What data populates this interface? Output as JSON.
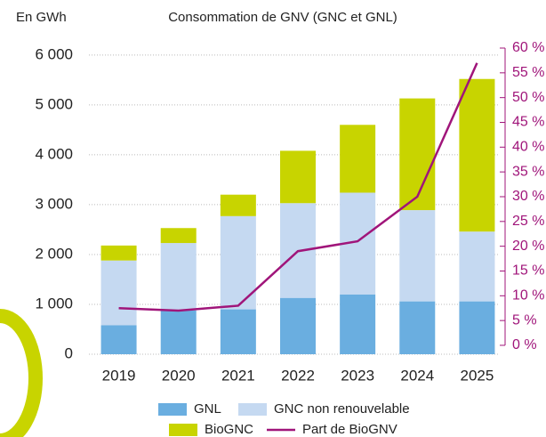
{
  "chart_data": {
    "type": "bar",
    "stacked": true,
    "title": "Consommation de GNV (GNC et GNL)",
    "y_label": "En GWh",
    "categories": [
      "2019",
      "2020",
      "2021",
      "2022",
      "2023",
      "2024",
      "2025"
    ],
    "series": [
      {
        "name": "GNL",
        "color": "#6aaee0",
        "values": [
          580,
          880,
          900,
          1130,
          1200,
          1060,
          1060
        ]
      },
      {
        "name": "GNC non renouvelable",
        "color": "#c5d9f1",
        "values": [
          1300,
          1350,
          1870,
          1900,
          2040,
          1830,
          1400
        ]
      },
      {
        "name": "BioGNC",
        "color": "#c8d400",
        "values": [
          300,
          300,
          430,
          1050,
          1360,
          2240,
          3060
        ]
      },
      {
        "name": "Part de BioGNV",
        "color": "#a0157a",
        "type": "line",
        "axis": "y2",
        "values": [
          7.5,
          7,
          8,
          19,
          21,
          30,
          57
        ]
      }
    ],
    "ylim": [
      0,
      6140
    ],
    "yticks": [
      0,
      {
        "value": 1000,
        "label": "1 000"
      },
      {
        "value": 2000,
        "label": "2 000"
      },
      {
        "value": 3000,
        "label": "3 000"
      },
      {
        "value": 4000,
        "label": "4 000"
      },
      {
        "value": 5000,
        "label": "5 000"
      },
      {
        "value": 6000,
        "label": "6 000"
      }
    ],
    "y2lim": [
      -1.8,
      60
    ],
    "y2ticks": [
      {
        "value": 0,
        "label": "0 %"
      },
      {
        "value": 5,
        "label": "5 %"
      },
      {
        "value": 10,
        "label": "10 %"
      },
      {
        "value": 15,
        "label": "15 %"
      },
      {
        "value": 20,
        "label": "20 %"
      },
      {
        "value": 25,
        "label": "25 %"
      },
      {
        "value": 30,
        "label": "30 %"
      },
      {
        "value": 35,
        "label": "35 %"
      },
      {
        "value": 40,
        "label": "40 %"
      },
      {
        "value": 45,
        "label": "45 %"
      },
      {
        "value": 50,
        "label": "50 %"
      },
      {
        "value": 55,
        "label": "55 %"
      },
      {
        "value": 60,
        "label": "60 %"
      }
    ],
    "grid": true
  }
}
